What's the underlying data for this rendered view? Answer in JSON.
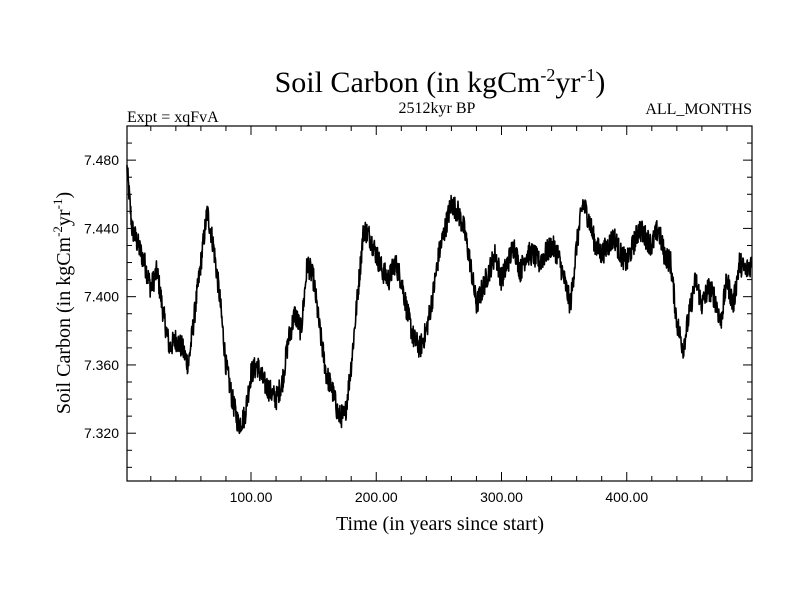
{
  "chart_data": {
    "type": "line",
    "title_main": "Soil Carbon (in kgCm",
    "title_sup1": "-2",
    "title_mid": "yr",
    "title_sup2": "-1",
    "title_end": ")",
    "subtitle_left": "Expt = xqFvA",
    "subtitle_center": "2512kyr BP",
    "subtitle_right": "ALL_MONTHS",
    "xlabel": "Time (in years since start)",
    "ylabel_main": "Soil Carbon (in kgCm",
    "ylabel_sup1": "-2",
    "ylabel_mid": "yr",
    "ylabel_sup2": "-1",
    "ylabel_end": ")",
    "xlim": [
      1,
      500
    ],
    "ylim": [
      7.292,
      7.5
    ],
    "x_ticks": [
      100,
      200,
      300,
      400
    ],
    "x_tick_labels": [
      "100.00",
      "200.00",
      "300.00",
      "400.00"
    ],
    "y_ticks": [
      7.32,
      7.36,
      7.4,
      7.44,
      7.48
    ],
    "y_tick_labels": [
      "7.320",
      "7.360",
      "7.400",
      "7.440",
      "7.480"
    ],
    "series": [
      {
        "name": "Soil Carbon",
        "color": "#000000",
        "x": [
          1,
          5,
          10,
          15,
          20,
          25,
          30,
          35,
          40,
          45,
          50,
          55,
          60,
          65,
          70,
          75,
          80,
          85,
          90,
          95,
          100,
          105,
          110,
          115,
          120,
          125,
          130,
          135,
          140,
          145,
          150,
          155,
          160,
          165,
          170,
          175,
          180,
          185,
          190,
          195,
          200,
          205,
          210,
          215,
          220,
          225,
          230,
          235,
          240,
          245,
          250,
          255,
          260,
          265,
          270,
          275,
          280,
          285,
          290,
          295,
          300,
          305,
          310,
          315,
          320,
          325,
          330,
          335,
          340,
          345,
          350,
          355,
          360,
          365,
          370,
          375,
          380,
          385,
          390,
          395,
          400,
          405,
          410,
          415,
          420,
          425,
          430,
          435,
          440,
          445,
          450,
          455,
          460,
          465,
          470,
          475,
          480,
          485,
          490,
          495,
          500
        ],
        "y": [
          7.475,
          7.44,
          7.43,
          7.42,
          7.405,
          7.415,
          7.39,
          7.37,
          7.375,
          7.37,
          7.36,
          7.39,
          7.42,
          7.45,
          7.43,
          7.4,
          7.36,
          7.34,
          7.325,
          7.33,
          7.355,
          7.36,
          7.35,
          7.345,
          7.34,
          7.35,
          7.375,
          7.39,
          7.38,
          7.42,
          7.41,
          7.38,
          7.355,
          7.345,
          7.33,
          7.33,
          7.36,
          7.4,
          7.44,
          7.435,
          7.425,
          7.415,
          7.41,
          7.42,
          7.41,
          7.39,
          7.375,
          7.37,
          7.38,
          7.4,
          7.425,
          7.44,
          7.455,
          7.45,
          7.44,
          7.42,
          7.395,
          7.405,
          7.415,
          7.425,
          7.41,
          7.42,
          7.43,
          7.415,
          7.425,
          7.425,
          7.42,
          7.425,
          7.43,
          7.425,
          7.41,
          7.395,
          7.43,
          7.455,
          7.445,
          7.43,
          7.425,
          7.43,
          7.435,
          7.425,
          7.42,
          7.43,
          7.44,
          7.435,
          7.43,
          7.44,
          7.425,
          7.42,
          7.385,
          7.37,
          7.39,
          7.41,
          7.395,
          7.405,
          7.4,
          7.385,
          7.41,
          7.395,
          7.42,
          7.415,
          7.42
        ]
      }
    ]
  }
}
